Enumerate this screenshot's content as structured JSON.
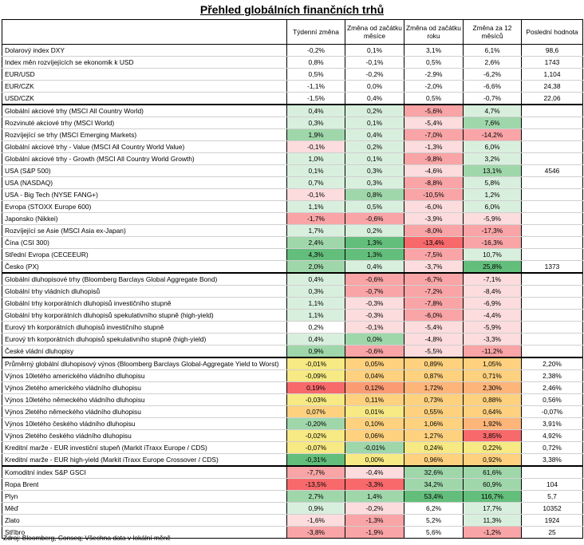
{
  "title": "Přehled globálních finančních trhů",
  "columns": [
    "",
    "Týdenní změna",
    "Změna od začátku měsíce",
    "Změna od začátku roku",
    "Změna za 12 měsíců",
    "Poslední hodnota"
  ],
  "source": "Zdroj: Bloomberg, Conseq; Všechna data v lokální měně",
  "palette": {
    "g3": "#63be7b",
    "g2": "#9fd7aa",
    "g1": "#d9efdd",
    "r3": "#f8696b",
    "r2": "#f9a4a6",
    "r1": "#fcdcdd",
    "y1": "#f7e983",
    "o1": "#fed17f",
    "o2": "#fdb57a",
    "o3": "#fb9b74",
    "n": "#ffffff"
  },
  "sections": [
    {
      "rows": [
        {
          "name": "Dolarový index DXY",
          "values": [
            "-0,2%",
            "0,1%",
            "3,1%",
            "6,1%",
            "98,6"
          ],
          "colors": [
            "n",
            "n",
            "n",
            "n",
            "n"
          ]
        },
        {
          "name": "Index měn rozvíjejících se ekonomik k USD",
          "values": [
            "0,8%",
            "-0,1%",
            "0,5%",
            "2,6%",
            "1743"
          ],
          "colors": [
            "n",
            "n",
            "n",
            "n",
            "n"
          ]
        },
        {
          "name": "EUR/USD",
          "values": [
            "0,5%",
            "-0,2%",
            "-2,9%",
            "-6,2%",
            "1,104"
          ],
          "colors": [
            "n",
            "n",
            "n",
            "n",
            "n"
          ]
        },
        {
          "name": "EUR/CZK",
          "values": [
            "-1,1%",
            "0,0%",
            "-2,0%",
            "-6,6%",
            "24,38"
          ],
          "colors": [
            "n",
            "n",
            "n",
            "n",
            "n"
          ]
        },
        {
          "name": "USD/CZK",
          "values": [
            "-1,5%",
            "0,4%",
            "0,5%",
            "-0,7%",
            "22,06"
          ],
          "colors": [
            "n",
            "n",
            "n",
            "n",
            "n"
          ]
        }
      ]
    },
    {
      "rows": [
        {
          "name": "Globální akciové trhy (MSCI All Country World)",
          "values": [
            "0,4%",
            "0,2%",
            "-5,6%",
            "4,7%",
            ""
          ],
          "colors": [
            "g1",
            "g1",
            "r2",
            "g1",
            "n"
          ]
        },
        {
          "name": "Rozvinuté akciové trhy (MSCI World)",
          "values": [
            "0,3%",
            "0,1%",
            "-5,4%",
            "7,6%",
            ""
          ],
          "colors": [
            "g1",
            "g1",
            "r1",
            "g2",
            "n"
          ]
        },
        {
          "name": "Rozvíjející se trhy (MSCI Emerging Markets)",
          "values": [
            "1,9%",
            "0,4%",
            "-7,0%",
            "-14,2%",
            ""
          ],
          "colors": [
            "g2",
            "g1",
            "r2",
            "r2",
            "n"
          ]
        },
        {
          "name": "Globální akciové trhy - Value (MSCI All Country World Value)",
          "values": [
            "-0,1%",
            "0,2%",
            "-1,3%",
            "6,0%",
            ""
          ],
          "colors": [
            "r1",
            "g1",
            "r1",
            "g1",
            "n"
          ]
        },
        {
          "name": "Globální akciové trhy - Growth (MSCI All Country World Growth)",
          "values": [
            "1,0%",
            "0,1%",
            "-9,8%",
            "3,2%",
            ""
          ],
          "colors": [
            "g1",
            "g1",
            "r2",
            "g1",
            "n"
          ]
        },
        {
          "name": "USA (S&P 500)",
          "values": [
            "0,1%",
            "0,3%",
            "-4,6%",
            "13,1%",
            "4546"
          ],
          "colors": [
            "g1",
            "g1",
            "r1",
            "g2",
            "n"
          ]
        },
        {
          "name": "USA (NASDAQ)",
          "values": [
            "0,7%",
            "0,3%",
            "-8,8%",
            "5,8%",
            ""
          ],
          "colors": [
            "g1",
            "g1",
            "r2",
            "g1",
            "n"
          ]
        },
        {
          "name": "USA - Big Tech (NYSE FANG+)",
          "values": [
            "-0,1%",
            "0,8%",
            "-10,5%",
            "1,2%",
            ""
          ],
          "colors": [
            "r1",
            "g2",
            "r2",
            "g1",
            "n"
          ]
        },
        {
          "name": "Evropa (STOXX Europe 600)",
          "values": [
            "1,1%",
            "0,5%",
            "-6,0%",
            "6,0%",
            ""
          ],
          "colors": [
            "g1",
            "g1",
            "r1",
            "g1",
            "n"
          ]
        },
        {
          "name": "Japonsko (Nikkei)",
          "values": [
            "-1,7%",
            "-0,6%",
            "-3,9%",
            "-5,9%",
            ""
          ],
          "colors": [
            "r2",
            "r2",
            "r1",
            "r1",
            "n"
          ]
        },
        {
          "name": "Rozvíjející se Asie (MSCI Asia ex-Japan)",
          "values": [
            "1,7%",
            "0,2%",
            "-8,0%",
            "-17,3%",
            ""
          ],
          "colors": [
            "g1",
            "g1",
            "r2",
            "r2",
            "n"
          ]
        },
        {
          "name": "Čína (CSI 300)",
          "values": [
            "2,4%",
            "1,3%",
            "-13,4%",
            "-16,3%",
            ""
          ],
          "colors": [
            "g2",
            "g3",
            "r3",
            "r2",
            "n"
          ]
        },
        {
          "name": "Střední Evropa (CECEEUR)",
          "values": [
            "4,3%",
            "1,3%",
            "-7,5%",
            "10,7%",
            ""
          ],
          "colors": [
            "g3",
            "g3",
            "r2",
            "g1",
            "n"
          ]
        },
        {
          "name": "Česko (PX)",
          "values": [
            "2,0%",
            "0,4%",
            "-3,7%",
            "25,8%",
            "1373"
          ],
          "colors": [
            "g2",
            "g1",
            "r1",
            "g3",
            "n"
          ]
        }
      ]
    },
    {
      "rows": [
        {
          "name": "Globální dluhopisové trhy (Bloomberg Barclays Global Aggregate Bond)",
          "values": [
            "0,4%",
            "-0,6%",
            "-6,7%",
            "-7,1%",
            ""
          ],
          "colors": [
            "g1",
            "r2",
            "r2",
            "r1",
            "n"
          ]
        },
        {
          "name": "Globální trhy vládních dluhopisů",
          "values": [
            "0,3%",
            "-0,7%",
            "-7,2%",
            "-8,4%",
            ""
          ],
          "colors": [
            "g1",
            "r2",
            "r2",
            "r1",
            "n"
          ]
        },
        {
          "name": "Globální trhy korporátních dluhopisů investičního stupně",
          "values": [
            "1,1%",
            "-0,3%",
            "-7,8%",
            "-6,9%",
            ""
          ],
          "colors": [
            "g1",
            "r1",
            "r2",
            "r1",
            "n"
          ]
        },
        {
          "name": "Globální trhy korporátních dluhopisů spekulativního stupně (high-yield)",
          "values": [
            "1,1%",
            "-0,3%",
            "-6,0%",
            "-4,4%",
            ""
          ],
          "colors": [
            "g1",
            "r1",
            "r2",
            "r1",
            "n"
          ]
        },
        {
          "name": "Eurový trh korporátních dluhopisů investičního stupně",
          "values": [
            "0,2%",
            "-0,1%",
            "-5,4%",
            "-5,9%",
            ""
          ],
          "colors": [
            "n",
            "r1",
            "r1",
            "r1",
            "n"
          ]
        },
        {
          "name": "Eurový trh korporátních dluhopisů spekulativního stupně (high-yield)",
          "values": [
            "0,4%",
            "0,0%",
            "-4,8%",
            "-3,3%",
            ""
          ],
          "colors": [
            "g1",
            "g2",
            "r1",
            "r1",
            "n"
          ]
        },
        {
          "name": "České vládní dluhopisy",
          "values": [
            "0,9%",
            "-0,6%",
            "-5,5%",
            "-11,2%",
            ""
          ],
          "colors": [
            "g2",
            "r2",
            "r1",
            "r2",
            "n"
          ]
        }
      ]
    },
    {
      "rows": [
        {
          "name": "Průměrný globální dluhopisový výnos (Bloomberg Barclays Global-Aggregate Yield to Worst)",
          "values": [
            "-0,01%",
            "0,05%",
            "0,89%",
            "1,05%",
            "2,20%"
          ],
          "colors": [
            "y1",
            "o1",
            "o1",
            "o1",
            "n"
          ]
        },
        {
          "name": "Výnos 10letého amerického vládního dluhopisu",
          "values": [
            "-0,09%",
            "0,04%",
            "0,87%",
            "0,71%",
            "2,38%"
          ],
          "colors": [
            "y1",
            "o1",
            "o1",
            "o1",
            "n"
          ]
        },
        {
          "name": "Výnos 2letého amerického vládního dluhopisu",
          "values": [
            "0,19%",
            "0,12%",
            "1,72%",
            "2,30%",
            "2,46%"
          ],
          "colors": [
            "r3",
            "o3",
            "o2",
            "o2",
            "n"
          ]
        },
        {
          "name": "Výnos 10letého německého vládního dluhopisu",
          "values": [
            "-0,03%",
            "0,11%",
            "0,73%",
            "0,88%",
            "0,56%"
          ],
          "colors": [
            "y1",
            "o1",
            "o1",
            "o1",
            "n"
          ]
        },
        {
          "name": "Výnos 2letého německého vládního dluhopisu",
          "values": [
            "0,07%",
            "0,01%",
            "0,55%",
            "0,64%",
            "-0,07%"
          ],
          "colors": [
            "o1",
            "y1",
            "o1",
            "o1",
            "n"
          ]
        },
        {
          "name": "Výnos 10letého českého vládního dluhopisu",
          "values": [
            "-0,20%",
            "0,10%",
            "1,06%",
            "1,92%",
            "3,91%"
          ],
          "colors": [
            "g2",
            "o1",
            "o1",
            "o2",
            "n"
          ]
        },
        {
          "name": "Výnos 2letého českého vládního dluhopisu",
          "values": [
            "-0,02%",
            "0,06%",
            "1,27%",
            "3,85%",
            "4,92%"
          ],
          "colors": [
            "y1",
            "o1",
            "o1",
            "r3",
            "n"
          ]
        },
        {
          "name": "Kreditní marže - EUR investiční stupeň (Markit iTraxx Europe / CDS)",
          "values": [
            "-0,07%",
            "-0,01%",
            "0,24%",
            "0,22%",
            "0,72%"
          ],
          "colors": [
            "y1",
            "g2",
            "y1",
            "y1",
            "n"
          ]
        },
        {
          "name": "Kreditní marže - EUR high-yield (Markit iTraxx Europe Crossover / CDS)",
          "values": [
            "-0,31%",
            "0,00%",
            "0,96%",
            "0,92%",
            "3,38%"
          ],
          "colors": [
            "g3",
            "y1",
            "o1",
            "o1",
            "n"
          ]
        }
      ]
    },
    {
      "rows": [
        {
          "name": "Komoditní index S&P GSCI",
          "values": [
            "-7,7%",
            "-0,4%",
            "32,6%",
            "61,6%",
            ""
          ],
          "colors": [
            "r2",
            "r1",
            "g2",
            "g2",
            "n"
          ]
        },
        {
          "name": "Ropa Brent",
          "values": [
            "-13,5%",
            "-3,3%",
            "34,2%",
            "60,9%",
            "104"
          ],
          "colors": [
            "r3",
            "r3",
            "g2",
            "g2",
            "n"
          ]
        },
        {
          "name": "Plyn",
          "values": [
            "2,7%",
            "1,4%",
            "53,4%",
            "116,7%",
            "5,7"
          ],
          "colors": [
            "g2",
            "g2",
            "g3",
            "g3",
            "n"
          ]
        },
        {
          "name": "Měď",
          "values": [
            "0,9%",
            "-0,2%",
            "6,2%",
            "17,7%",
            "10352"
          ],
          "colors": [
            "g1",
            "r1",
            "n",
            "g1",
            "n"
          ]
        },
        {
          "name": "Zlato",
          "values": [
            "-1,6%",
            "-1,3%",
            "5,2%",
            "11,3%",
            "1924"
          ],
          "colors": [
            "r1",
            "r2",
            "n",
            "g1",
            "n"
          ]
        },
        {
          "name": "Stříbro",
          "values": [
            "-3,8%",
            "-1,9%",
            "5,6%",
            "-1,2%",
            "25"
          ],
          "colors": [
            "r2",
            "r2",
            "n",
            "r2",
            "n"
          ]
        }
      ]
    }
  ]
}
